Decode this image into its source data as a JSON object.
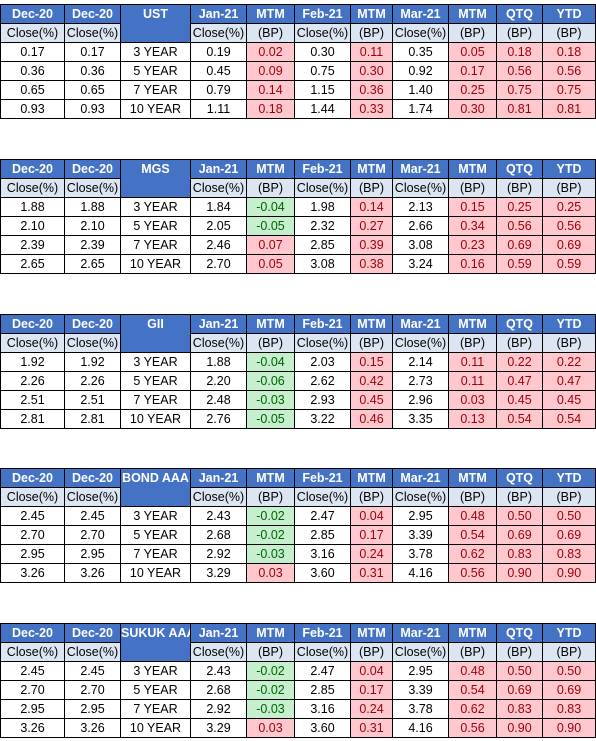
{
  "headers": {
    "row1": [
      "Dec-20",
      "Dec-20",
      "Jan-21",
      "MTM",
      "Feb-21",
      "MTM",
      "Mar-21",
      "MTM",
      "QTQ",
      "YTD"
    ],
    "row2": [
      "Close(%)",
      "Close(%)",
      "Close(%)",
      "(BP)",
      "Close(%)",
      "(BP)",
      "Close(%)",
      "(BP)",
      "(BP)",
      "(BP)"
    ]
  },
  "colors": {
    "header_bg": "#4472c4",
    "subheader_bg": "#dce6f2",
    "positive_bg": "#ffc7ce",
    "positive_text": "#9c0006",
    "negative_bg": "#c6efce",
    "negative_text": "#006100"
  },
  "tables": [
    {
      "name": "UST",
      "rows": [
        [
          "0.17",
          "0.17",
          "3 YEAR",
          "0.19",
          "0.02",
          "0.30",
          "0.11",
          "0.35",
          "0.05",
          "0.18",
          "0.18"
        ],
        [
          "0.36",
          "0.36",
          "5 YEAR",
          "0.45",
          "0.09",
          "0.75",
          "0.30",
          "0.92",
          "0.17",
          "0.56",
          "0.56"
        ],
        [
          "0.65",
          "0.65",
          "7 YEAR",
          "0.79",
          "0.14",
          "1.15",
          "0.36",
          "1.40",
          "0.25",
          "0.75",
          "0.75"
        ],
        [
          "0.93",
          "0.93",
          "10 YEAR",
          "1.11",
          "0.18",
          "1.44",
          "0.33",
          "1.74",
          "0.30",
          "0.81",
          "0.81"
        ]
      ]
    },
    {
      "name": "MGS",
      "rows": [
        [
          "1.88",
          "1.88",
          "3 YEAR",
          "1.84",
          "-0.04",
          "1.98",
          "0.14",
          "2.13",
          "0.15",
          "0.25",
          "0.25"
        ],
        [
          "2.10",
          "2.10",
          "5 YEAR",
          "2.05",
          "-0.05",
          "2.32",
          "0.27",
          "2.66",
          "0.34",
          "0.56",
          "0.56"
        ],
        [
          "2.39",
          "2.39",
          "7 YEAR",
          "2.46",
          "0.07",
          "2.85",
          "0.39",
          "3.08",
          "0.23",
          "0.69",
          "0.69"
        ],
        [
          "2.65",
          "2.65",
          "10 YEAR",
          "2.70",
          "0.05",
          "3.08",
          "0.38",
          "3.24",
          "0.16",
          "0.59",
          "0.59"
        ]
      ]
    },
    {
      "name": "GII",
      "rows": [
        [
          "1.92",
          "1.92",
          "3 YEAR",
          "1.88",
          "-0.04",
          "2.03",
          "0.15",
          "2.14",
          "0.11",
          "0.22",
          "0.22"
        ],
        [
          "2.26",
          "2.26",
          "5 YEAR",
          "2.20",
          "-0.06",
          "2.62",
          "0.42",
          "2.73",
          "0.11",
          "0.47",
          "0.47"
        ],
        [
          "2.51",
          "2.51",
          "7 YEAR",
          "2.48",
          "-0.03",
          "2.93",
          "0.45",
          "2.96",
          "0.03",
          "0.45",
          "0.45"
        ],
        [
          "2.81",
          "2.81",
          "10 YEAR",
          "2.76",
          "-0.05",
          "3.22",
          "0.46",
          "3.35",
          "0.13",
          "0.54",
          "0.54"
        ]
      ]
    },
    {
      "name": "BOND AAA",
      "rows": [
        [
          "2.45",
          "2.45",
          "3 YEAR",
          "2.43",
          "-0.02",
          "2.47",
          "0.04",
          "2.95",
          "0.48",
          "0.50",
          "0.50"
        ],
        [
          "2.70",
          "2.70",
          "5 YEAR",
          "2.68",
          "-0.02",
          "2.85",
          "0.17",
          "3.39",
          "0.54",
          "0.69",
          "0.69"
        ],
        [
          "2.95",
          "2.95",
          "7 YEAR",
          "2.92",
          "-0.03",
          "3.16",
          "0.24",
          "3.78",
          "0.62",
          "0.83",
          "0.83"
        ],
        [
          "3.26",
          "3.26",
          "10 YEAR",
          "3.29",
          "0.03",
          "3.60",
          "0.31",
          "4.16",
          "0.56",
          "0.90",
          "0.90"
        ]
      ]
    },
    {
      "name": "SUKUK AAA",
      "rows": [
        [
          "2.45",
          "2.45",
          "3 YEAR",
          "2.43",
          "-0.02",
          "2.47",
          "0.04",
          "2.95",
          "0.48",
          "0.50",
          "0.50"
        ],
        [
          "2.70",
          "2.70",
          "5 YEAR",
          "2.68",
          "-0.02",
          "2.85",
          "0.17",
          "3.39",
          "0.54",
          "0.69",
          "0.69"
        ],
        [
          "2.95",
          "2.95",
          "7 YEAR",
          "2.92",
          "-0.03",
          "3.16",
          "0.24",
          "3.78",
          "0.62",
          "0.83",
          "0.83"
        ],
        [
          "3.26",
          "3.26",
          "10 YEAR",
          "3.29",
          "0.03",
          "3.60",
          "0.31",
          "4.16",
          "0.56",
          "0.90",
          "0.90"
        ]
      ]
    }
  ]
}
